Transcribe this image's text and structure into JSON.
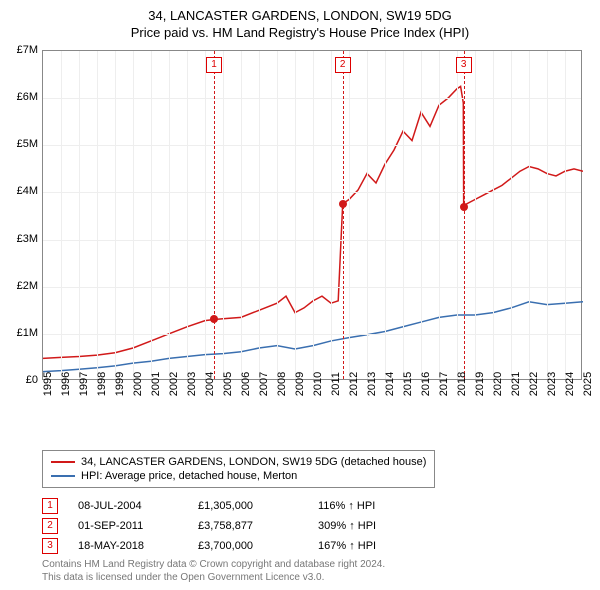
{
  "title_line1": "34, LANCASTER GARDENS, LONDON, SW19 5DG",
  "title_line2": "Price paid vs. HM Land Registry's House Price Index (HPI)",
  "chart": {
    "type": "line",
    "xlim": [
      1995,
      2025
    ],
    "ylim": [
      0,
      7
    ],
    "y_tick_labels": [
      "£0",
      "£1M",
      "£2M",
      "£3M",
      "£4M",
      "£5M",
      "£6M",
      "£7M"
    ],
    "y_tick_values": [
      0,
      1,
      2,
      3,
      4,
      5,
      6,
      7
    ],
    "x_ticks": [
      1995,
      1996,
      1997,
      1998,
      1999,
      2000,
      2001,
      2002,
      2003,
      2004,
      2005,
      2006,
      2007,
      2008,
      2009,
      2010,
      2011,
      2012,
      2013,
      2014,
      2015,
      2016,
      2017,
      2018,
      2019,
      2020,
      2021,
      2022,
      2023,
      2024,
      2025
    ],
    "grid_color": "#eeeeee",
    "border_color": "#888888",
    "background_color": "#ffffff",
    "label_fontsize": 11,
    "series": [
      {
        "name": "property",
        "color": "#d11919",
        "width": 1.5,
        "points": [
          [
            1995,
            0.48
          ],
          [
            1996,
            0.5
          ],
          [
            1997,
            0.52
          ],
          [
            1998,
            0.55
          ],
          [
            1999,
            0.6
          ],
          [
            2000,
            0.7
          ],
          [
            2001,
            0.85
          ],
          [
            2002,
            1.0
          ],
          [
            2003,
            1.15
          ],
          [
            2004,
            1.28
          ],
          [
            2004.5,
            1.305
          ],
          [
            2005,
            1.32
          ],
          [
            2006,
            1.35
          ],
          [
            2007,
            1.5
          ],
          [
            2008,
            1.65
          ],
          [
            2008.5,
            1.8
          ],
          [
            2009,
            1.45
          ],
          [
            2009.5,
            1.55
          ],
          [
            2010,
            1.7
          ],
          [
            2010.5,
            1.8
          ],
          [
            2011,
            1.65
          ],
          [
            2011.4,
            1.7
          ],
          [
            2011.65,
            3.76
          ],
          [
            2012,
            3.85
          ],
          [
            2012.5,
            4.05
          ],
          [
            2013,
            4.4
          ],
          [
            2013.5,
            4.2
          ],
          [
            2014,
            4.6
          ],
          [
            2014.5,
            4.9
          ],
          [
            2015,
            5.3
          ],
          [
            2015.5,
            5.1
          ],
          [
            2016,
            5.7
          ],
          [
            2016.5,
            5.4
          ],
          [
            2017,
            5.85
          ],
          [
            2017.5,
            6.0
          ],
          [
            2018,
            6.2
          ],
          [
            2018.2,
            6.25
          ],
          [
            2018.35,
            5.9
          ],
          [
            2018.37,
            3.7
          ],
          [
            2018.5,
            3.75
          ],
          [
            2019,
            3.85
          ],
          [
            2019.5,
            3.95
          ],
          [
            2020,
            4.05
          ],
          [
            2020.5,
            4.15
          ],
          [
            2021,
            4.3
          ],
          [
            2021.5,
            4.45
          ],
          [
            2022,
            4.55
          ],
          [
            2022.5,
            4.5
          ],
          [
            2023,
            4.4
          ],
          [
            2023.5,
            4.35
          ],
          [
            2024,
            4.45
          ],
          [
            2024.5,
            4.5
          ],
          [
            2025,
            4.45
          ]
        ]
      },
      {
        "name": "hpi",
        "color": "#3a6fb0",
        "width": 1.5,
        "points": [
          [
            1995,
            0.2
          ],
          [
            1996,
            0.22
          ],
          [
            1997,
            0.25
          ],
          [
            1998,
            0.28
          ],
          [
            1999,
            0.32
          ],
          [
            2000,
            0.38
          ],
          [
            2001,
            0.42
          ],
          [
            2002,
            0.48
          ],
          [
            2003,
            0.52
          ],
          [
            2004,
            0.56
          ],
          [
            2005,
            0.58
          ],
          [
            2006,
            0.62
          ],
          [
            2007,
            0.7
          ],
          [
            2008,
            0.75
          ],
          [
            2009,
            0.68
          ],
          [
            2010,
            0.75
          ],
          [
            2011,
            0.85
          ],
          [
            2012,
            0.92
          ],
          [
            2013,
            0.98
          ],
          [
            2014,
            1.05
          ],
          [
            2015,
            1.15
          ],
          [
            2016,
            1.25
          ],
          [
            2017,
            1.35
          ],
          [
            2018,
            1.4
          ],
          [
            2019,
            1.4
          ],
          [
            2020,
            1.45
          ],
          [
            2021,
            1.55
          ],
          [
            2022,
            1.68
          ],
          [
            2023,
            1.62
          ],
          [
            2024,
            1.65
          ],
          [
            2025,
            1.68
          ]
        ]
      }
    ],
    "event_lines": [
      {
        "x": 2004.5,
        "badge": "1"
      },
      {
        "x": 2011.65,
        "badge": "2"
      },
      {
        "x": 2018.37,
        "badge": "3"
      }
    ],
    "markers": [
      {
        "x": 2004.5,
        "y": 1.305,
        "color": "#d11919"
      },
      {
        "x": 2011.65,
        "y": 3.76,
        "color": "#d11919"
      },
      {
        "x": 2018.37,
        "y": 3.7,
        "color": "#d11919"
      }
    ],
    "event_line_color": "#d11919",
    "event_line_dash": "4,3"
  },
  "legend": {
    "items": [
      {
        "label": "34, LANCASTER GARDENS, LONDON, SW19 5DG (detached house)",
        "color": "#d11919"
      },
      {
        "label": "HPI: Average price, detached house, Merton",
        "color": "#3a6fb0"
      }
    ]
  },
  "events_table": [
    {
      "badge": "1",
      "date": "08-JUL-2004",
      "price": "£1,305,000",
      "pct": "116% ↑ HPI"
    },
    {
      "badge": "2",
      "date": "01-SEP-2011",
      "price": "£3,758,877",
      "pct": "309% ↑ HPI"
    },
    {
      "badge": "3",
      "date": "18-MAY-2018",
      "price": "£3,700,000",
      "pct": "167% ↑ HPI"
    }
  ],
  "footer_line1": "Contains HM Land Registry data © Crown copyright and database right 2024.",
  "footer_line2": "This data is licensed under the Open Government Licence v3.0."
}
